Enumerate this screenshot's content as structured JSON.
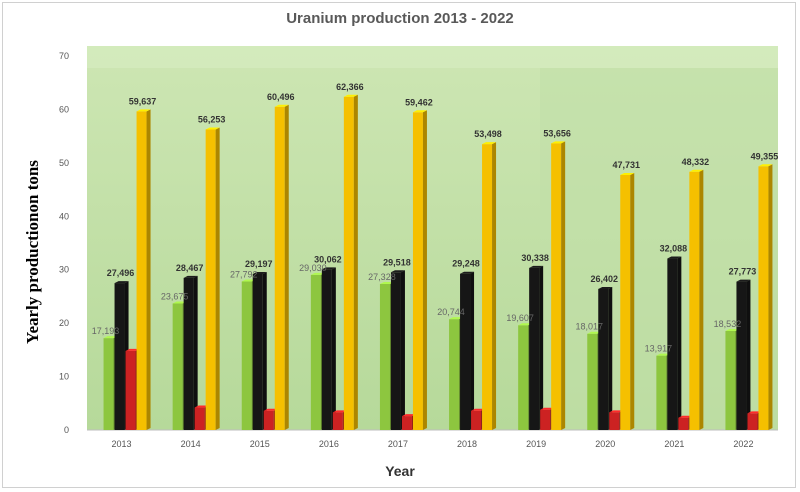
{
  "chart_data": {
    "type": "bar",
    "title": "Uranium production 2013 - 2022",
    "xlabel": "Year",
    "ylabel": "Yearly productionon tons",
    "ylim": [
      0,
      70
    ],
    "yticks": [
      0,
      10,
      20,
      30,
      40,
      50,
      60,
      70
    ],
    "value_scale": 0.001,
    "categories": [
      "2013",
      "2014",
      "2015",
      "2016",
      "2017",
      "2018",
      "2019",
      "2020",
      "2021",
      "2022"
    ],
    "series": [
      {
        "color": "#8dc63f",
        "values": [
          17193,
          23675,
          27792,
          29030,
          27328,
          20744,
          19607,
          18017,
          13917,
          18532
        ],
        "labels": [
          "17,193",
          "23,675",
          "27,792",
          "29,030",
          "27,328",
          "20,744",
          "19,607",
          "18,017",
          "13,917",
          "18,532"
        ]
      },
      {
        "color": "#161616",
        "values": [
          27496,
          28467,
          29197,
          30062,
          29518,
          29248,
          30338,
          26402,
          32088,
          27773
        ],
        "labels": [
          "27,496",
          "28,467",
          "29,197",
          "30,062",
          "29,518",
          "29,248",
          "30,338",
          "26,402",
          "32,088",
          "27,773"
        ]
      },
      {
        "color": "#cc2222",
        "values": [
          14800,
          4200,
          3600,
          3300,
          2600,
          3600,
          3800,
          3300,
          2300,
          3100
        ],
        "labels": []
      },
      {
        "color": "#f5c000",
        "values": [
          59637,
          56253,
          60496,
          62366,
          59462,
          53498,
          53656,
          47731,
          48332,
          49355
        ],
        "labels": [
          "59,637",
          "56,253",
          "60,496",
          "62,366",
          "59,462",
          "53,498",
          "53,656",
          "47,731",
          "48,332",
          "49,355"
        ]
      }
    ],
    "grid": false,
    "legend": "none"
  }
}
